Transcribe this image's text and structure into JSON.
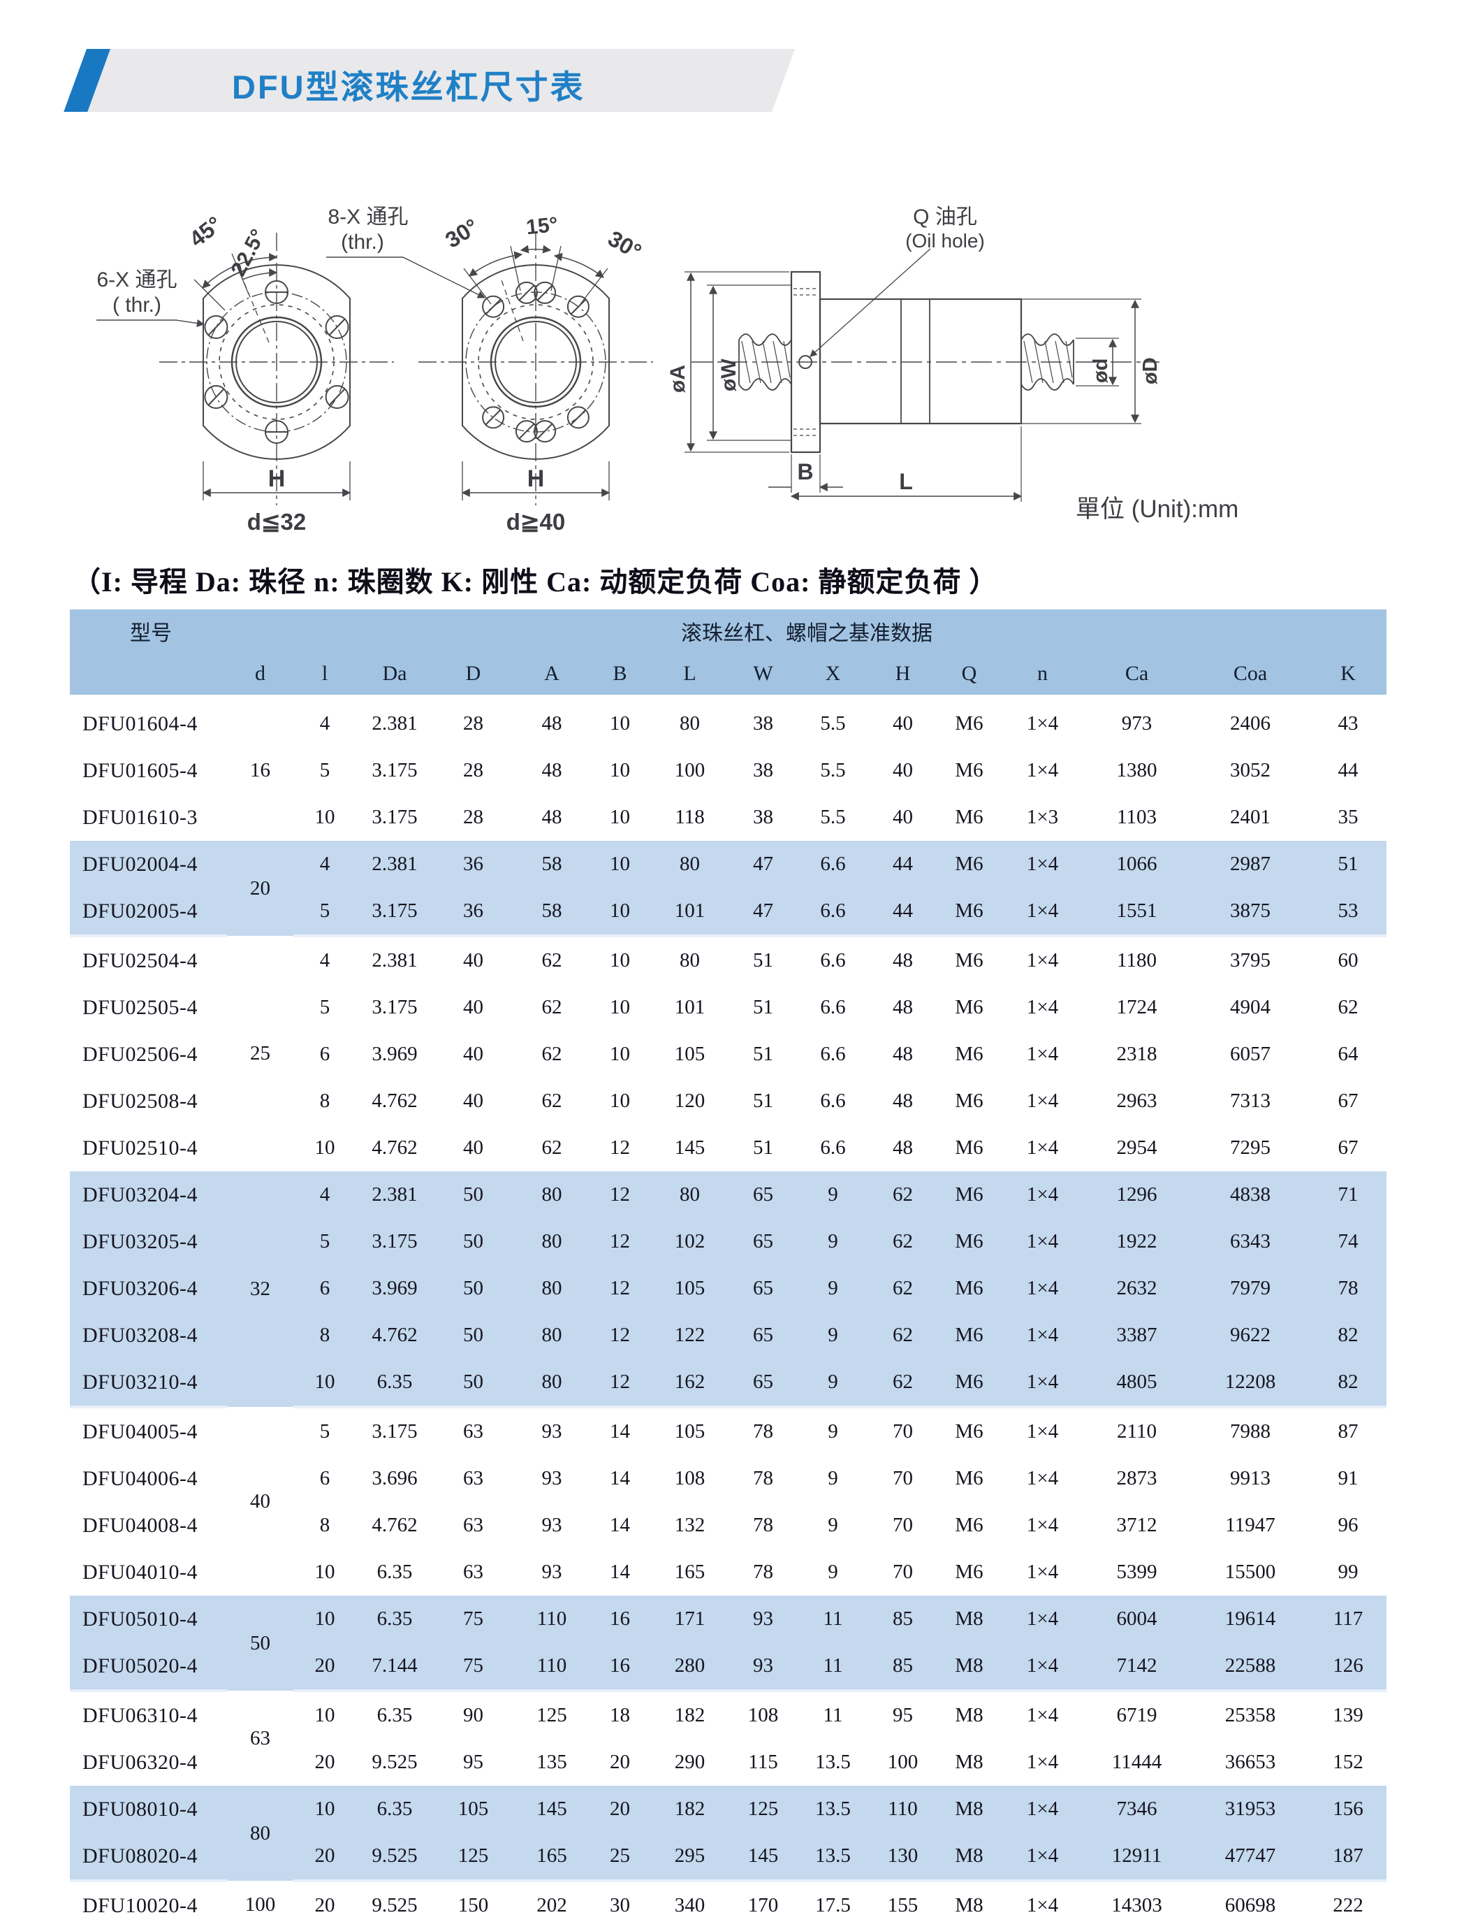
{
  "page": {
    "title": "DFU型滚珠丝杠尺寸表",
    "legend": "（I: 导程 Da: 珠径 n: 珠圈数 K: 刚性 Ca: 动额定负荷 Coa: 静额定负荷 ）"
  },
  "diagrams": {
    "left_view": {
      "thru_label": "6-X 通孔",
      "thru_label2": "( thr.)",
      "angle_outer": "45°",
      "angle_inner": "22.5°",
      "dim_width": "H",
      "dim_range": "d≦32"
    },
    "middle_view": {
      "thru_label": "8-X 通孔",
      "thru_label2": "(thr.)",
      "angle_left": "30°",
      "angle_top": "15°",
      "angle_right": "30°",
      "dim_width": "H",
      "dim_range": "d≧40"
    },
    "side_view": {
      "oil_label": "Q 油孔",
      "oil_label2": "(Oil hole)",
      "dia_a": "øA",
      "dia_w": "øW",
      "dia_d_small": "ød",
      "dia_d_big": "øD",
      "dim_b": "B",
      "dim_l": "L",
      "unit_note": "單位 (Unit):mm"
    }
  },
  "table": {
    "header_model": "型号",
    "header_data": "滚珠丝杠、螺帽之基准数据",
    "columns": [
      "d",
      "l",
      "Da",
      "D",
      "A",
      "B",
      "L",
      "W",
      "X",
      "H",
      "Q",
      "n",
      "Ca",
      "Coa",
      "K"
    ],
    "groups": [
      {
        "d": "16",
        "shaded": false,
        "rows": [
          [
            "DFU01604-4",
            "4",
            "2.381",
            "28",
            "48",
            "10",
            "80",
            "38",
            "5.5",
            "40",
            "M6",
            "1×4",
            "973",
            "2406",
            "43"
          ],
          [
            "DFU01605-4",
            "5",
            "3.175",
            "28",
            "48",
            "10",
            "100",
            "38",
            "5.5",
            "40",
            "M6",
            "1×4",
            "1380",
            "3052",
            "44"
          ],
          [
            "DFU01610-3",
            "10",
            "3.175",
            "28",
            "48",
            "10",
            "118",
            "38",
            "5.5",
            "40",
            "M6",
            "1×3",
            "1103",
            "2401",
            "35"
          ]
        ]
      },
      {
        "d": "20",
        "shaded": true,
        "rows": [
          [
            "DFU02004-4",
            "4",
            "2.381",
            "36",
            "58",
            "10",
            "80",
            "47",
            "6.6",
            "44",
            "M6",
            "1×4",
            "1066",
            "2987",
            "51"
          ],
          [
            "DFU02005-4",
            "5",
            "3.175",
            "36",
            "58",
            "10",
            "101",
            "47",
            "6.6",
            "44",
            "M6",
            "1×4",
            "1551",
            "3875",
            "53"
          ]
        ]
      },
      {
        "d": "25",
        "shaded": false,
        "rows": [
          [
            "DFU02504-4",
            "4",
            "2.381",
            "40",
            "62",
            "10",
            "80",
            "51",
            "6.6",
            "48",
            "M6",
            "1×4",
            "1180",
            "3795",
            "60"
          ],
          [
            "DFU02505-4",
            "5",
            "3.175",
            "40",
            "62",
            "10",
            "101",
            "51",
            "6.6",
            "48",
            "M6",
            "1×4",
            "1724",
            "4904",
            "62"
          ],
          [
            "DFU02506-4",
            "6",
            "3.969",
            "40",
            "62",
            "10",
            "105",
            "51",
            "6.6",
            "48",
            "M6",
            "1×4",
            "2318",
            "6057",
            "64"
          ],
          [
            "DFU02508-4",
            "8",
            "4.762",
            "40",
            "62",
            "10",
            "120",
            "51",
            "6.6",
            "48",
            "M6",
            "1×4",
            "2963",
            "7313",
            "67"
          ],
          [
            "DFU02510-4",
            "10",
            "4.762",
            "40",
            "62",
            "12",
            "145",
            "51",
            "6.6",
            "48",
            "M6",
            "1×4",
            "2954",
            "7295",
            "67"
          ]
        ]
      },
      {
        "d": "32",
        "shaded": true,
        "rows": [
          [
            "DFU03204-4",
            "4",
            "2.381",
            "50",
            "80",
            "12",
            "80",
            "65",
            "9",
            "62",
            "M6",
            "1×4",
            "1296",
            "4838",
            "71"
          ],
          [
            "DFU03205-4",
            "5",
            "3.175",
            "50",
            "80",
            "12",
            "102",
            "65",
            "9",
            "62",
            "M6",
            "1×4",
            "1922",
            "6343",
            "74"
          ],
          [
            "DFU03206-4",
            "6",
            "3.969",
            "50",
            "80",
            "12",
            "105",
            "65",
            "9",
            "62",
            "M6",
            "1×4",
            "2632",
            "7979",
            "78"
          ],
          [
            "DFU03208-4",
            "8",
            "4.762",
            "50",
            "80",
            "12",
            "122",
            "65",
            "9",
            "62",
            "M6",
            "1×4",
            "3387",
            "9622",
            "82"
          ],
          [
            "DFU03210-4",
            "10",
            "6.35",
            "50",
            "80",
            "12",
            "162",
            "65",
            "9",
            "62",
            "M6",
            "1×4",
            "4805",
            "12208",
            "82"
          ]
        ]
      },
      {
        "d": "40",
        "shaded": false,
        "rows": [
          [
            "DFU04005-4",
            "5",
            "3.175",
            "63",
            "93",
            "14",
            "105",
            "78",
            "9",
            "70",
            "M6",
            "1×4",
            "2110",
            "7988",
            "87"
          ],
          [
            "DFU04006-4",
            "6",
            "3.696",
            "63",
            "93",
            "14",
            "108",
            "78",
            "9",
            "70",
            "M6",
            "1×4",
            "2873",
            "9913",
            "91"
          ],
          [
            "DFU04008-4",
            "8",
            "4.762",
            "63",
            "93",
            "14",
            "132",
            "78",
            "9",
            "70",
            "M6",
            "1×4",
            "3712",
            "11947",
            "96"
          ],
          [
            "DFU04010-4",
            "10",
            "6.35",
            "63",
            "93",
            "14",
            "165",
            "78",
            "9",
            "70",
            "M6",
            "1×4",
            "5399",
            "15500",
            "99"
          ]
        ]
      },
      {
        "d": "50",
        "shaded": true,
        "rows": [
          [
            "DFU05010-4",
            "10",
            "6.35",
            "75",
            "110",
            "16",
            "171",
            "93",
            "11",
            "85",
            "M8",
            "1×4",
            "6004",
            "19614",
            "117"
          ],
          [
            "DFU05020-4",
            "20",
            "7.144",
            "75",
            "110",
            "16",
            "280",
            "93",
            "11",
            "85",
            "M8",
            "1×4",
            "7142",
            "22588",
            "126"
          ]
        ]
      },
      {
        "d": "63",
        "shaded": false,
        "rows": [
          [
            "DFU06310-4",
            "10",
            "6.35",
            "90",
            "125",
            "18",
            "182",
            "108",
            "11",
            "95",
            "M8",
            "1×4",
            "6719",
            "25358",
            "139"
          ],
          [
            "DFU06320-4",
            "20",
            "9.525",
            "95",
            "135",
            "20",
            "290",
            "115",
            "13.5",
            "100",
            "M8",
            "1×4",
            "11444",
            "36653",
            "152"
          ]
        ]
      },
      {
        "d": "80",
        "shaded": true,
        "rows": [
          [
            "DFU08010-4",
            "10",
            "6.35",
            "105",
            "145",
            "20",
            "182",
            "125",
            "13.5",
            "110",
            "M8",
            "1×4",
            "7346",
            "31953",
            "156"
          ],
          [
            "DFU08020-4",
            "20",
            "9.525",
            "125",
            "165",
            "25",
            "295",
            "145",
            "13.5",
            "130",
            "M8",
            "1×4",
            "12911",
            "47747",
            "187"
          ]
        ]
      },
      {
        "d": "100",
        "shaded": false,
        "rows": [
          [
            "DFU10020-4",
            "20",
            "9.525",
            "150",
            "202",
            "30",
            "340",
            "170",
            "17.5",
            "155",
            "M8",
            "1×4",
            "14303",
            "60698",
            "222"
          ]
        ]
      }
    ]
  }
}
